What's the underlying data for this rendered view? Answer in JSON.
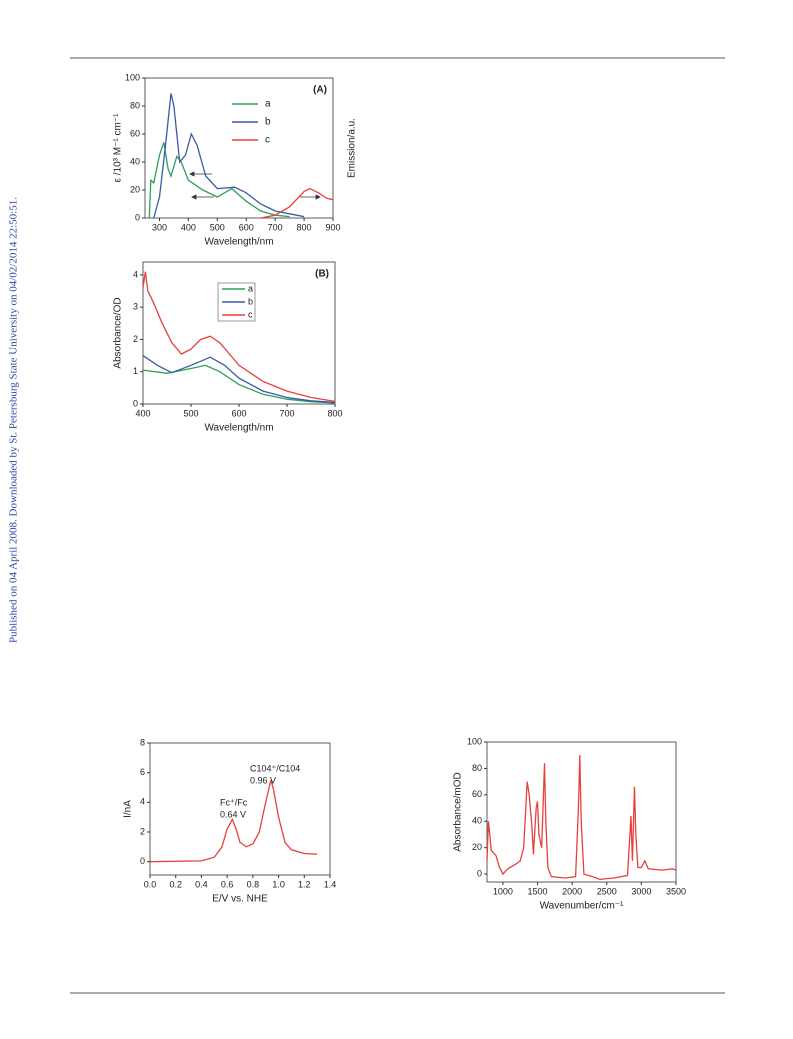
{
  "side_note": "Published on 04 April 2008. Downloaded by St. Petersburg State University on 04/02/2014 22:50:51.",
  "chart_data": [
    {
      "type": "line",
      "title": "(A)",
      "x_label": "Wavelength/nm",
      "y_label": "ε /10³ M⁻¹ cm⁻¹",
      "y2_label": "Emission/a.u.",
      "xlim": [
        250,
        900
      ],
      "xticks": [
        300,
        400,
        500,
        600,
        700,
        800,
        900
      ],
      "ylim": [
        0,
        100
      ],
      "yticks": [
        0,
        20,
        40,
        60,
        80,
        100
      ],
      "y2lim": [
        0,
        100
      ],
      "legend": "top-right",
      "series": [
        {
          "name": "a",
          "color": "#2ca05a",
          "x": [
            265,
            270,
            280,
            300,
            315,
            330,
            340,
            360,
            375,
            400,
            450,
            500,
            550,
            600,
            650,
            700,
            750
          ],
          "values": [
            0,
            27,
            25,
            45,
            54,
            35,
            30,
            44,
            40,
            27,
            20,
            15,
            21,
            12,
            5,
            2,
            1
          ]
        },
        {
          "name": "b",
          "color": "#3a5aa8",
          "x": [
            280,
            300,
            320,
            340,
            350,
            370,
            390,
            410,
            430,
            460,
            500,
            560,
            600,
            650,
            700,
            750,
            800
          ],
          "values": [
            0,
            15,
            50,
            89,
            80,
            40,
            45,
            60,
            52,
            30,
            21,
            22,
            18,
            10,
            5,
            3,
            1
          ]
        },
        {
          "name": "c",
          "color": "#e8403a",
          "axis": "y2",
          "x": [
            650,
            700,
            750,
            800,
            820,
            850,
            880,
            900
          ],
          "values": [
            0,
            2,
            8,
            19,
            21,
            18,
            14,
            13
          ]
        }
      ]
    },
    {
      "type": "line",
      "title": "(B)",
      "x_label": "Wavelength/nm",
      "y_label": "Absorbance/OD",
      "xlim": [
        400,
        800
      ],
      "xticks": [
        400,
        500,
        600,
        700,
        800
      ],
      "ylim": [
        0,
        4.4
      ],
      "yticks": [
        0,
        1,
        2,
        3,
        4
      ],
      "legend": "top-center",
      "series": [
        {
          "name": "a",
          "color": "#2ca05a",
          "x": [
            400,
            450,
            500,
            530,
            560,
            600,
            650,
            700,
            750,
            800
          ],
          "values": [
            1.05,
            0.95,
            1.1,
            1.2,
            1.0,
            0.6,
            0.3,
            0.15,
            0.07,
            0.03
          ]
        },
        {
          "name": "b",
          "color": "#3a5aa8",
          "x": [
            400,
            430,
            460,
            500,
            540,
            570,
            600,
            650,
            700,
            750,
            800
          ],
          "values": [
            1.5,
            1.2,
            0.97,
            1.2,
            1.45,
            1.2,
            0.8,
            0.4,
            0.2,
            0.1,
            0.05
          ]
        },
        {
          "name": "c",
          "color": "#e8403a",
          "x": [
            400,
            405,
            410,
            420,
            440,
            460,
            480,
            500,
            520,
            540,
            560,
            600,
            650,
            700,
            750,
            800
          ],
          "values": [
            3.6,
            4.1,
            3.5,
            3.2,
            2.5,
            1.9,
            1.55,
            1.7,
            2.0,
            2.1,
            1.9,
            1.2,
            0.7,
            0.4,
            0.2,
            0.08
          ]
        }
      ]
    },
    {
      "type": "line",
      "x_label": "E/V vs. NHE",
      "y_label": "I/nA",
      "xlim": [
        0,
        1.4
      ],
      "xticks": [
        {
          "value": 0,
          "label": "0.0"
        },
        0.2,
        0.4,
        0.6,
        0.8,
        {
          "value": 1,
          "label": "1.0"
        },
        1.2,
        1.4
      ],
      "ylim": [
        -0.9,
        8
      ],
      "yticks": [
        0,
        2,
        4,
        6,
        8
      ],
      "annotations": [
        "Fc⁺/Fc",
        "0.64 V",
        "C104⁺/C104",
        "0.96 V"
      ],
      "series": [
        {
          "color": "#e8403a",
          "x": [
            0,
            0.4,
            0.5,
            0.56,
            0.6,
            0.64,
            0.67,
            0.7,
            0.75,
            0.8,
            0.85,
            0.9,
            0.94,
            0.96,
            1.0,
            1.05,
            1.1,
            1.2,
            1.3
          ],
          "values": [
            0,
            0.05,
            0.3,
            1.0,
            2.2,
            2.85,
            2.2,
            1.3,
            1.0,
            1.2,
            2.0,
            4.0,
            5.5,
            4.9,
            3.0,
            1.3,
            0.8,
            0.55,
            0.5
          ]
        }
      ]
    },
    {
      "type": "line",
      "x_label": "Wavenumber/cm⁻¹",
      "y_label": "Absorbance/mOD",
      "xlim": [
        770,
        3500
      ],
      "xticks": [
        1000,
        1500,
        2000,
        2500,
        3000,
        3500
      ],
      "ylim": [
        -6,
        100
      ],
      "yticks": [
        0,
        20,
        40,
        60,
        80,
        100
      ],
      "series": [
        {
          "color": "#e8403a",
          "x": [
            770,
            790,
            810,
            830,
            900,
            950,
            1000,
            1050,
            1100,
            1200,
            1250,
            1300,
            1350,
            1380,
            1420,
            1440,
            1480,
            1500,
            1520,
            1560,
            1600,
            1620,
            1650,
            1700,
            1900,
            2050,
            2090,
            2110,
            2130,
            2170,
            2300,
            2400,
            2600,
            2800,
            2850,
            2870,
            2900,
            2920,
            2950,
            3000,
            3050,
            3100,
            3300,
            3450,
            3500
          ],
          "values": [
            10,
            40,
            30,
            18,
            14,
            5,
            0,
            3,
            5,
            8,
            10,
            20,
            70,
            60,
            35,
            15,
            50,
            55,
            30,
            20,
            84,
            40,
            5,
            -2,
            -3,
            -2,
            50,
            90,
            40,
            0,
            -2,
            -4,
            -3,
            -1,
            44,
            10,
            66,
            30,
            5,
            5,
            10,
            4,
            3,
            4,
            3
          ]
        }
      ]
    }
  ]
}
